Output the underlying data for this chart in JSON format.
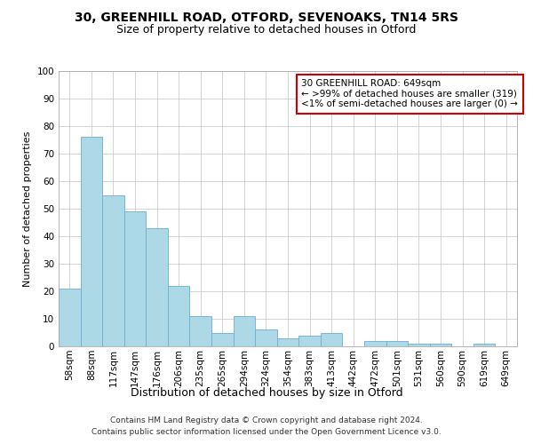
{
  "title": "30, GREENHILL ROAD, OTFORD, SEVENOAKS, TN14 5RS",
  "subtitle": "Size of property relative to detached houses in Otford",
  "xlabel": "Distribution of detached houses by size in Otford",
  "ylabel": "Number of detached properties",
  "categories": [
    "58sqm",
    "88sqm",
    "117sqm",
    "147sqm",
    "176sqm",
    "206sqm",
    "235sqm",
    "265sqm",
    "294sqm",
    "324sqm",
    "354sqm",
    "383sqm",
    "413sqm",
    "442sqm",
    "472sqm",
    "501sqm",
    "531sqm",
    "560sqm",
    "590sqm",
    "619sqm",
    "649sqm"
  ],
  "values": [
    21,
    76,
    55,
    49,
    43,
    22,
    11,
    5,
    11,
    6,
    3,
    4,
    5,
    0,
    2,
    2,
    1,
    1,
    0,
    1,
    0
  ],
  "bar_color": "#add8e6",
  "bar_edge_color": "#6baed6",
  "annotation_title": "30 GREENHILL ROAD: 649sqm",
  "annotation_line1": "← >99% of detached houses are smaller (319)",
  "annotation_line2": "<1% of semi-detached houses are larger (0) →",
  "annotation_box_color": "#ffffff",
  "annotation_border_color": "#cc0000",
  "ylim": [
    0,
    100
  ],
  "yticks": [
    0,
    10,
    20,
    30,
    40,
    50,
    60,
    70,
    80,
    90,
    100
  ],
  "grid_color": "#cccccc",
  "background_color": "#ffffff",
  "footer_line1": "Contains HM Land Registry data © Crown copyright and database right 2024.",
  "footer_line2": "Contains public sector information licensed under the Open Government Licence v3.0.",
  "title_fontsize": 10,
  "subtitle_fontsize": 9,
  "xlabel_fontsize": 9,
  "ylabel_fontsize": 8,
  "tick_fontsize": 7.5,
  "annotation_fontsize": 7.5,
  "footer_fontsize": 6.5
}
